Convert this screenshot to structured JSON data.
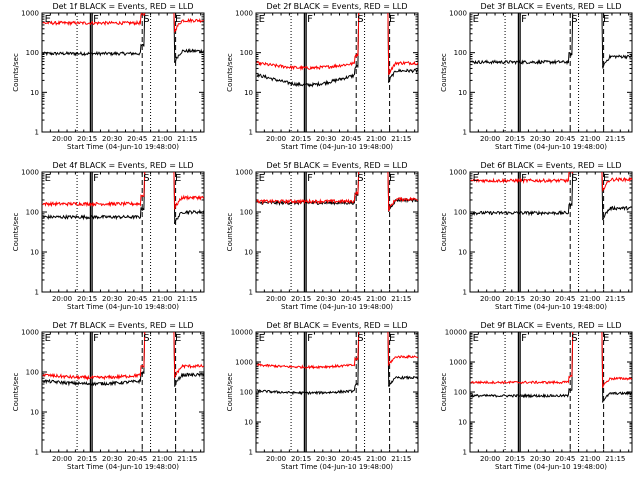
{
  "chart_data": [
    {
      "type": "line",
      "title": "Det 1f BLACK = Events, RED = LLD",
      "xlabel": "Start Time (04-Jun-10 19:48:00)",
      "ylabel": "Counts/sec",
      "yscale": "log",
      "ylim": [
        1,
        1000
      ],
      "xlim": [
        "19:48",
        "21:25"
      ],
      "x_ticks": [
        "20:00",
        "20:15",
        "20:30",
        "20:45",
        "21:00",
        "21:15"
      ],
      "y_ticks": [
        "1",
        "10",
        "100",
        "1000"
      ],
      "markers": [
        "E",
        "F",
        "S",
        "E"
      ],
      "series": [
        {
          "name": "BLACK",
          "color": "#000000",
          "base": 95,
          "after": 110,
          "dip": "none",
          "end": "21:25"
        },
        {
          "name": "RED",
          "color": "#ff0000",
          "base": 560,
          "after": 650,
          "dip": "none",
          "end": "21:25"
        }
      ]
    },
    {
      "type": "line",
      "title": "Det 2f BLACK = Events, RED = LLD",
      "xlabel": "Start Time (04-Jun-10 19:48:00)",
      "ylabel": "Counts/sec",
      "yscale": "log",
      "ylim": [
        1,
        1000
      ],
      "xlim": [
        "19:48",
        "21:25"
      ],
      "x_ticks": [
        "20:00",
        "20:15",
        "20:30",
        "20:45",
        "21:00",
        "21:15"
      ],
      "y_ticks": [
        "1",
        "10",
        "100",
        "1000"
      ],
      "markers": [
        "E",
        "F",
        "S",
        "E"
      ],
      "series": [
        {
          "name": "BLACK",
          "color": "#000000",
          "base": 28,
          "after": 35,
          "dip": "deep",
          "end": "21:25"
        },
        {
          "name": "RED",
          "color": "#ff0000",
          "base": 55,
          "after": 55,
          "dip": "shallow",
          "end": "21:25"
        }
      ]
    },
    {
      "type": "line",
      "title": "Det 3f BLACK = Events, RED = LLD",
      "xlabel": "Start Time (04-Jun-10 19:48:00)",
      "ylabel": "Counts/sec",
      "yscale": "log",
      "ylim": [
        1,
        1000
      ],
      "xlim": [
        "19:48",
        "21:25"
      ],
      "x_ticks": [
        "20:00",
        "20:15",
        "20:30",
        "20:45",
        "21:00",
        "21:15"
      ],
      "y_ticks": [
        "1",
        "10",
        "100",
        "1000"
      ],
      "markers": [
        "E",
        "F",
        "S",
        "E"
      ],
      "series": [
        {
          "name": "BLACK",
          "color": "#000000",
          "base": 58,
          "after": 80,
          "dip": "none",
          "end": "21:25"
        }
      ]
    },
    {
      "type": "line",
      "title": "Det 4f BLACK = Events, RED = LLD",
      "xlabel": "Start Time (04-Jun-10 19:48:00)",
      "ylabel": "Counts/sec",
      "yscale": "log",
      "ylim": [
        1,
        1000
      ],
      "xlim": [
        "19:48",
        "21:25"
      ],
      "x_ticks": [
        "20:00",
        "20:15",
        "20:30",
        "20:45",
        "21:00",
        "21:15"
      ],
      "y_ticks": [
        "1",
        "10",
        "100",
        "1000"
      ],
      "markers": [
        "E",
        "F",
        "S",
        "E"
      ],
      "series": [
        {
          "name": "BLACK",
          "color": "#000000",
          "base": 75,
          "after": 100,
          "dip": "none",
          "end": "21:25"
        },
        {
          "name": "RED",
          "color": "#ff0000",
          "base": 160,
          "after": 230,
          "dip": "none",
          "end": "21:25"
        }
      ]
    },
    {
      "type": "line",
      "title": "Det 5f BLACK = Events, RED = LLD",
      "xlabel": "Start Time (04-Jun-10 19:48:00)",
      "ylabel": "Counts/sec",
      "yscale": "log",
      "ylim": [
        1,
        1000
      ],
      "xlim": [
        "19:48",
        "21:25"
      ],
      "x_ticks": [
        "20:00",
        "20:15",
        "20:30",
        "20:45",
        "21:00",
        "21:15"
      ],
      "y_ticks": [
        "1",
        "10",
        "100",
        "1000"
      ],
      "markers": [
        "E",
        "F",
        "S",
        "E"
      ],
      "series": [
        {
          "name": "BLACK",
          "color": "#000000",
          "base": 170,
          "after": 200,
          "dip": "none",
          "end": "21:25"
        },
        {
          "name": "RED",
          "color": "#ff0000",
          "base": 185,
          "after": 210,
          "dip": "none",
          "end": "21:25"
        }
      ]
    },
    {
      "type": "line",
      "title": "Det 6f BLACK = Events, RED = LLD",
      "xlabel": "Start Time (04-Jun-10 19:48:00)",
      "ylabel": "Counts/sec",
      "yscale": "log",
      "ylim": [
        1,
        1000
      ],
      "xlim": [
        "19:48",
        "21:25"
      ],
      "x_ticks": [
        "20:00",
        "20:15",
        "20:30",
        "20:45",
        "21:00",
        "21:15"
      ],
      "y_ticks": [
        "1",
        "10",
        "100",
        "1000"
      ],
      "markers": [
        "E",
        "F",
        "S",
        "E"
      ],
      "series": [
        {
          "name": "BLACK",
          "color": "#000000",
          "base": 95,
          "after": 125,
          "dip": "none",
          "end": "21:25"
        },
        {
          "name": "RED",
          "color": "#ff0000",
          "base": 610,
          "after": 650,
          "dip": "none",
          "end": "21:25"
        }
      ]
    },
    {
      "type": "line",
      "title": "Det 7f BLACK = Events, RED = LLD",
      "xlabel": "Start Time (04-Jun-10 19:48:00)",
      "ylabel": "Counts/sec",
      "yscale": "log",
      "ylim": [
        1,
        1000
      ],
      "xlim": [
        "19:48",
        "21:25"
      ],
      "x_ticks": [
        "20:00",
        "20:15",
        "20:30",
        "20:45",
        "21:00",
        "21:15"
      ],
      "y_ticks": [
        "1",
        "10",
        "100",
        "1000"
      ],
      "markers": [
        "E",
        "F",
        "S",
        "E"
      ],
      "series": [
        {
          "name": "BLACK",
          "color": "#000000",
          "base": 60,
          "after": 85,
          "dip": "slight",
          "end": "21:25"
        },
        {
          "name": "RED",
          "color": "#ff0000",
          "base": 85,
          "after": 140,
          "dip": "slight",
          "end": "21:25"
        }
      ]
    },
    {
      "type": "line",
      "title": "Det 8f BLACK = Events, RED = LLD",
      "xlabel": "Start Time (04-Jun-10 19:48:00)",
      "ylabel": "Counts/sec",
      "yscale": "log",
      "ylim": [
        1,
        10000
      ],
      "xlim": [
        "19:48",
        "21:25"
      ],
      "x_ticks": [
        "20:00",
        "20:15",
        "20:30",
        "20:45",
        "21:00",
        "21:15"
      ],
      "y_ticks": [
        "1",
        "10",
        "100",
        "1000",
        "10000"
      ],
      "markers": [
        "E",
        "F",
        "S",
        "E"
      ],
      "series": [
        {
          "name": "BLACK",
          "color": "#000000",
          "base": 110,
          "after": 300,
          "dip": "slight",
          "end": "21:25"
        },
        {
          "name": "RED",
          "color": "#ff0000",
          "base": 800,
          "after": 1500,
          "dip": "slight",
          "end": "21:25"
        }
      ]
    },
    {
      "type": "line",
      "title": "Det 9f BLACK = Events, RED = LLD",
      "xlabel": "Start Time (04-Jun-10 19:48:00)",
      "ylabel": "Counts/sec",
      "yscale": "log",
      "ylim": [
        1,
        10000
      ],
      "xlim": [
        "19:48",
        "21:25"
      ],
      "x_ticks": [
        "20:00",
        "20:15",
        "20:30",
        "20:45",
        "21:00",
        "21:15"
      ],
      "y_ticks": [
        "1",
        "10",
        "100",
        "1000",
        "10000"
      ],
      "markers": [
        "E",
        "F",
        "S",
        "E"
      ],
      "series": [
        {
          "name": "BLACK",
          "color": "#000000",
          "base": 75,
          "after": 90,
          "dip": "none",
          "end": "21:25"
        },
        {
          "name": "RED",
          "color": "#ff0000",
          "base": 210,
          "after": 280,
          "dip": "none",
          "end": "21:25"
        }
      ]
    }
  ],
  "event_lines": {
    "dotted": [
      "20:09",
      "20:53"
    ],
    "solid": [
      "20:17",
      "20:18"
    ],
    "dashed": [
      "20:48",
      "21:08"
    ]
  },
  "marker_times": [
    "19:49",
    "20:18",
    "20:48",
    "21:07"
  ],
  "gap": [
    "20:49",
    "21:07"
  ]
}
